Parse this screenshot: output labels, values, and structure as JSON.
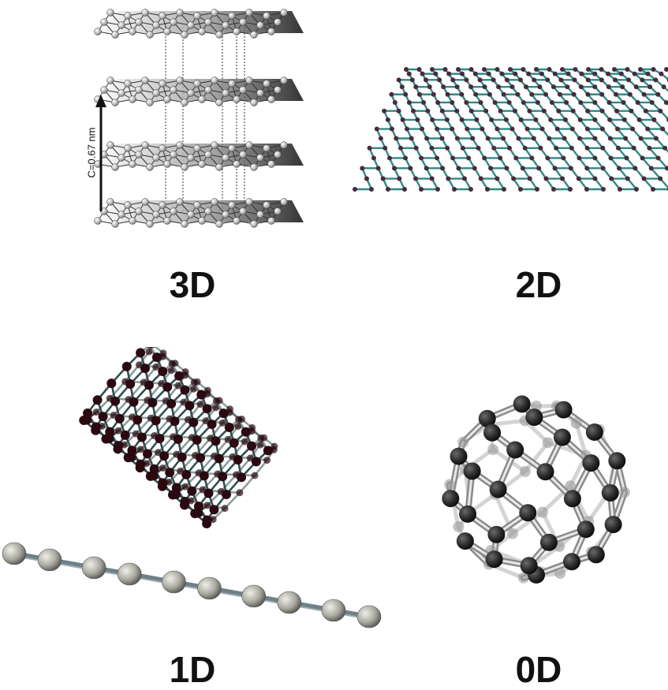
{
  "panels": [
    {
      "id": "graphite",
      "caption": "3D",
      "annotation": "C=0.67 nm"
    },
    {
      "id": "graphene",
      "caption": "2D"
    },
    {
      "id": "nanotube-and-carbyne",
      "caption": "1D"
    },
    {
      "id": "fullerene",
      "caption": "0D"
    }
  ],
  "colors": {
    "sphere_light": "#c8c8c8",
    "sphere_dark": "#2a2a2a",
    "graphene_bond": "#2f8a86",
    "graphene_atom": "#4a2a3a",
    "nanotube_atom": "#2a0a10",
    "nanotube_bond": "#2f4f4f",
    "caption": "#111111"
  }
}
